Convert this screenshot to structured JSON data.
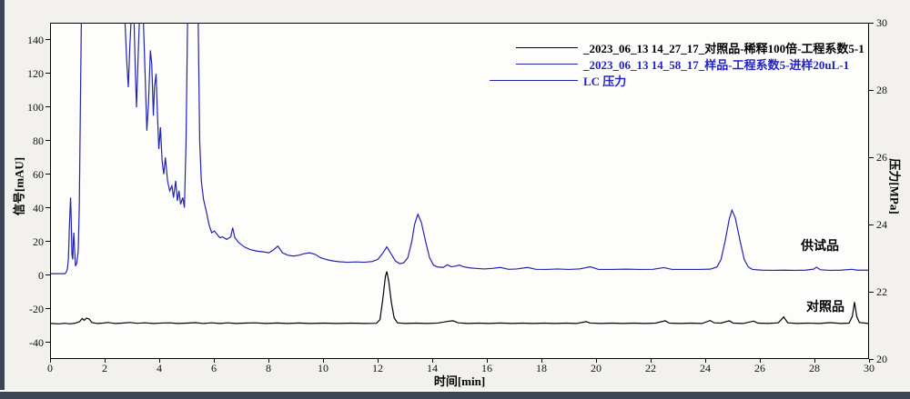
{
  "window": {
    "background_color": "#f2f1ee",
    "chrome_color": "#3c4456",
    "plot_background": "#fdfdfc",
    "frame_color": "#000000"
  },
  "axes": {
    "x": {
      "title": "时间[min]",
      "ticks": [
        0,
        2,
        4,
        6,
        8,
        10,
        12,
        14,
        16,
        18,
        20,
        22,
        24,
        26,
        28,
        30
      ]
    },
    "y_left": {
      "title": "信号[mAU]",
      "ticks": [
        -40,
        -20,
        0,
        20,
        40,
        60,
        80,
        100,
        120,
        140
      ]
    },
    "y_right": {
      "title": "压力[MPa]",
      "ticks": [
        20,
        22,
        24,
        26,
        28,
        30
      ]
    }
  },
  "legend": {
    "items": [
      {
        "label": "_2023_06_13 14_27_17_对照品-稀释100倍-工程系数5-1",
        "color": "#000000",
        "line_color": "#000000"
      },
      {
        "label": "_2023_06_13 14_58_17_样品-工程系数5-进样20uL-1",
        "color": "#2323c8",
        "line_color": "#2323b0"
      },
      {
        "label": "LC 压力",
        "color": "#2323c8",
        "line_color": "#2323b0"
      }
    ]
  },
  "annotations": [
    {
      "text": "供试品",
      "x_min": 27.5,
      "y_mau": 18.3
    },
    {
      "text": "对照品",
      "x_min": 27.7,
      "y_mau": -18.3
    }
  ],
  "chart_data": {
    "type": "line",
    "title": "",
    "xlabel": "时间[min]",
    "ylabel_left": "信号[mAU]",
    "ylabel_right": "压力[MPa]",
    "x_range": [
      0,
      30
    ],
    "y_left_range": [
      -50,
      150
    ],
    "y_right_range": [
      20,
      30
    ],
    "grid": false,
    "legend_position": "top-right",
    "series": [
      {
        "name": "_2023_06_13 14_58_17_样品-工程系数5-进样20uL-1",
        "axis": "left",
        "color": "#2323b0",
        "points": [
          [
            0,
            0.5
          ],
          [
            0.5,
            0.5
          ],
          [
            0.55,
            1
          ],
          [
            0.6,
            3
          ],
          [
            0.64,
            9
          ],
          [
            0.68,
            30
          ],
          [
            0.72,
            46
          ],
          [
            0.74,
            36
          ],
          [
            0.77,
            12
          ],
          [
            0.8,
            9
          ],
          [
            0.82,
            20
          ],
          [
            0.84,
            25
          ],
          [
            0.87,
            14
          ],
          [
            0.9,
            5
          ],
          [
            0.95,
            7
          ],
          [
            1.0,
            14
          ],
          [
            1.04,
            40
          ],
          [
            1.08,
            100
          ],
          [
            1.12,
            158
          ],
          [
            2.7,
            158
          ],
          [
            2.78,
            128
          ],
          [
            2.84,
            112
          ],
          [
            2.9,
            138
          ],
          [
            2.96,
            158
          ],
          [
            3.04,
            158
          ],
          [
            3.1,
            120
          ],
          [
            3.14,
            100
          ],
          [
            3.2,
            130
          ],
          [
            3.26,
            158
          ],
          [
            3.38,
            158
          ],
          [
            3.46,
            118
          ],
          [
            3.52,
            86
          ],
          [
            3.58,
            102
          ],
          [
            3.65,
            134
          ],
          [
            3.7,
            126
          ],
          [
            3.76,
            95
          ],
          [
            3.8,
            112
          ],
          [
            3.86,
            120
          ],
          [
            3.9,
            100
          ],
          [
            3.96,
            75
          ],
          [
            4.02,
            88
          ],
          [
            4.08,
            68
          ],
          [
            4.14,
            60
          ],
          [
            4.2,
            70
          ],
          [
            4.28,
            56
          ],
          [
            4.36,
            50
          ],
          [
            4.44,
            53
          ],
          [
            4.5,
            46
          ],
          [
            4.58,
            56
          ],
          [
            4.64,
            44
          ],
          [
            4.7,
            50
          ],
          [
            4.76,
            42
          ],
          [
            4.84,
            46
          ],
          [
            4.9,
            40
          ],
          [
            4.96,
            80
          ],
          [
            5.02,
            158
          ],
          [
            5.4,
            158
          ],
          [
            5.46,
            80
          ],
          [
            5.52,
            56
          ],
          [
            5.6,
            45
          ],
          [
            5.7,
            38
          ],
          [
            5.8,
            30
          ],
          [
            5.9,
            25
          ],
          [
            6.0,
            26
          ],
          [
            6.1,
            24
          ],
          [
            6.2,
            22
          ],
          [
            6.3,
            22.5
          ],
          [
            6.45,
            21
          ],
          [
            6.6,
            22.5
          ],
          [
            6.67,
            28
          ],
          [
            6.75,
            22
          ],
          [
            6.9,
            19
          ],
          [
            7.1,
            16.5
          ],
          [
            7.3,
            15
          ],
          [
            7.55,
            14
          ],
          [
            7.8,
            13.5
          ],
          [
            8.0,
            13
          ],
          [
            8.15,
            14.5
          ],
          [
            8.33,
            17
          ],
          [
            8.5,
            13
          ],
          [
            8.7,
            11.5
          ],
          [
            8.9,
            11
          ],
          [
            9.1,
            11.5
          ],
          [
            9.3,
            12.5
          ],
          [
            9.5,
            13
          ],
          [
            9.7,
            12
          ],
          [
            9.9,
            10
          ],
          [
            10.1,
            9
          ],
          [
            10.3,
            8.2
          ],
          [
            10.6,
            7.6
          ],
          [
            10.9,
            7.3
          ],
          [
            11.2,
            7.5
          ],
          [
            11.5,
            7.3
          ],
          [
            11.8,
            7.8
          ],
          [
            12.0,
            9
          ],
          [
            12.15,
            12
          ],
          [
            12.33,
            16.5
          ],
          [
            12.5,
            12
          ],
          [
            12.65,
            8
          ],
          [
            12.8,
            6.5
          ],
          [
            12.95,
            7
          ],
          [
            13.1,
            10
          ],
          [
            13.25,
            20
          ],
          [
            13.35,
            30
          ],
          [
            13.47,
            36
          ],
          [
            13.6,
            31
          ],
          [
            13.75,
            20
          ],
          [
            13.9,
            10
          ],
          [
            14.05,
            5.5
          ],
          [
            14.2,
            4.5
          ],
          [
            14.4,
            4.2
          ],
          [
            14.55,
            5.8
          ],
          [
            14.7,
            4.6
          ],
          [
            14.85,
            5
          ],
          [
            15.0,
            5.6
          ],
          [
            15.15,
            4.6
          ],
          [
            15.35,
            4
          ],
          [
            15.6,
            3.6
          ],
          [
            15.9,
            3.3
          ],
          [
            16.2,
            3.6
          ],
          [
            16.5,
            4.2
          ],
          [
            16.8,
            3.1
          ],
          [
            17.1,
            3.3
          ],
          [
            17.5,
            4.2
          ],
          [
            17.8,
            3.1
          ],
          [
            18.2,
            3
          ],
          [
            18.6,
            3.3
          ],
          [
            19.0,
            3
          ],
          [
            19.4,
            3.3
          ],
          [
            19.8,
            4.6
          ],
          [
            20.1,
            3
          ],
          [
            20.6,
            3
          ],
          [
            21.1,
            3.2
          ],
          [
            21.6,
            3
          ],
          [
            22.1,
            3.1
          ],
          [
            22.5,
            4.1
          ],
          [
            22.8,
            3
          ],
          [
            23.3,
            3
          ],
          [
            23.8,
            3
          ],
          [
            24.2,
            3.2
          ],
          [
            24.45,
            4.5
          ],
          [
            24.6,
            9
          ],
          [
            24.75,
            20
          ],
          [
            24.9,
            33
          ],
          [
            25.0,
            38.5
          ],
          [
            25.12,
            34
          ],
          [
            25.3,
            20
          ],
          [
            25.45,
            9
          ],
          [
            25.6,
            4.5
          ],
          [
            25.75,
            3
          ],
          [
            26.1,
            2.6
          ],
          [
            26.5,
            2.5
          ],
          [
            26.9,
            2.6
          ],
          [
            27.3,
            2.5
          ],
          [
            27.7,
            2.6
          ],
          [
            28.0,
            3.2
          ],
          [
            28.1,
            4.4
          ],
          [
            28.25,
            2.8
          ],
          [
            28.6,
            2.5
          ],
          [
            29.0,
            2.6
          ],
          [
            29.4,
            3.1
          ],
          [
            29.6,
            2.6
          ],
          [
            30,
            2.6
          ]
        ]
      },
      {
        "name": "_2023_06_13 14_27_17_对照品-稀释100倍-工程系数5-1",
        "axis": "left",
        "color": "#000000",
        "points": [
          [
            0,
            -29.3
          ],
          [
            0.3,
            -29.5
          ],
          [
            0.5,
            -29.2
          ],
          [
            0.7,
            -29.5
          ],
          [
            0.9,
            -29.1
          ],
          [
            1.05,
            -28.2
          ],
          [
            1.15,
            -26.3
          ],
          [
            1.22,
            -27.4
          ],
          [
            1.3,
            -26.1
          ],
          [
            1.4,
            -26.6
          ],
          [
            1.5,
            -28.7
          ],
          [
            1.7,
            -29.3
          ],
          [
            1.9,
            -29.1
          ],
          [
            2.1,
            -28.7
          ],
          [
            2.35,
            -29.3
          ],
          [
            2.6,
            -29.1
          ],
          [
            2.9,
            -28.7
          ],
          [
            3.15,
            -29.2
          ],
          [
            3.45,
            -28.9
          ],
          [
            3.75,
            -29.3
          ],
          [
            4.05,
            -29
          ],
          [
            4.35,
            -28.9
          ],
          [
            4.65,
            -29.3
          ],
          [
            5.0,
            -29.1
          ],
          [
            5.3,
            -28.8
          ],
          [
            5.6,
            -29.3
          ],
          [
            5.9,
            -28.9
          ],
          [
            6.2,
            -29.3
          ],
          [
            6.5,
            -28.9
          ],
          [
            6.8,
            -29.3
          ],
          [
            7.1,
            -29.1
          ],
          [
            7.5,
            -28.9
          ],
          [
            7.9,
            -29.3
          ],
          [
            8.3,
            -29
          ],
          [
            8.7,
            -29.3
          ],
          [
            9.1,
            -29
          ],
          [
            9.5,
            -29.3
          ],
          [
            10.0,
            -29.1
          ],
          [
            10.5,
            -29.3
          ],
          [
            11.0,
            -29.1
          ],
          [
            11.5,
            -29.3
          ],
          [
            11.95,
            -29.2
          ],
          [
            12.08,
            -27
          ],
          [
            12.18,
            -15
          ],
          [
            12.28,
            -1
          ],
          [
            12.33,
            1.8
          ],
          [
            12.4,
            -4
          ],
          [
            12.5,
            -17
          ],
          [
            12.6,
            -26
          ],
          [
            12.72,
            -28.9
          ],
          [
            13.0,
            -29.3
          ],
          [
            13.4,
            -29.1
          ],
          [
            13.8,
            -29.3
          ],
          [
            14.2,
            -29
          ],
          [
            14.55,
            -28.1
          ],
          [
            14.75,
            -27.7
          ],
          [
            14.95,
            -28.9
          ],
          [
            15.3,
            -29.3
          ],
          [
            15.7,
            -29.1
          ],
          [
            16.1,
            -29.3
          ],
          [
            16.5,
            -29
          ],
          [
            16.9,
            -29.3
          ],
          [
            17.3,
            -29.1
          ],
          [
            17.7,
            -29.3
          ],
          [
            18.1,
            -29.1
          ],
          [
            18.5,
            -29.3
          ],
          [
            18.9,
            -29.1
          ],
          [
            19.3,
            -29.3
          ],
          [
            19.65,
            -28.2
          ],
          [
            19.8,
            -29
          ],
          [
            20.2,
            -29.3
          ],
          [
            20.6,
            -29.1
          ],
          [
            21.0,
            -29.3
          ],
          [
            21.4,
            -29.1
          ],
          [
            21.8,
            -29.3
          ],
          [
            22.2,
            -29.1
          ],
          [
            22.55,
            -27.7
          ],
          [
            22.7,
            -29.1
          ],
          [
            23.1,
            -29.3
          ],
          [
            23.5,
            -29.1
          ],
          [
            23.9,
            -29.3
          ],
          [
            24.2,
            -27.5
          ],
          [
            24.35,
            -28.9
          ],
          [
            24.6,
            -29.1
          ],
          [
            24.9,
            -27.7
          ],
          [
            25.05,
            -29.1
          ],
          [
            25.4,
            -29.3
          ],
          [
            25.8,
            -27.9
          ],
          [
            25.95,
            -29.1
          ],
          [
            26.3,
            -29.3
          ],
          [
            26.7,
            -28.9
          ],
          [
            26.9,
            -25.4
          ],
          [
            27.05,
            -28.9
          ],
          [
            27.4,
            -29.3
          ],
          [
            27.8,
            -29.1
          ],
          [
            28.2,
            -29.3
          ],
          [
            28.6,
            -28.8
          ],
          [
            29.0,
            -29.3
          ],
          [
            29.3,
            -29.1
          ],
          [
            29.42,
            -25
          ],
          [
            29.5,
            -16.5
          ],
          [
            29.58,
            -25
          ],
          [
            29.68,
            -28.7
          ],
          [
            30,
            -29.3
          ]
        ]
      }
    ]
  }
}
